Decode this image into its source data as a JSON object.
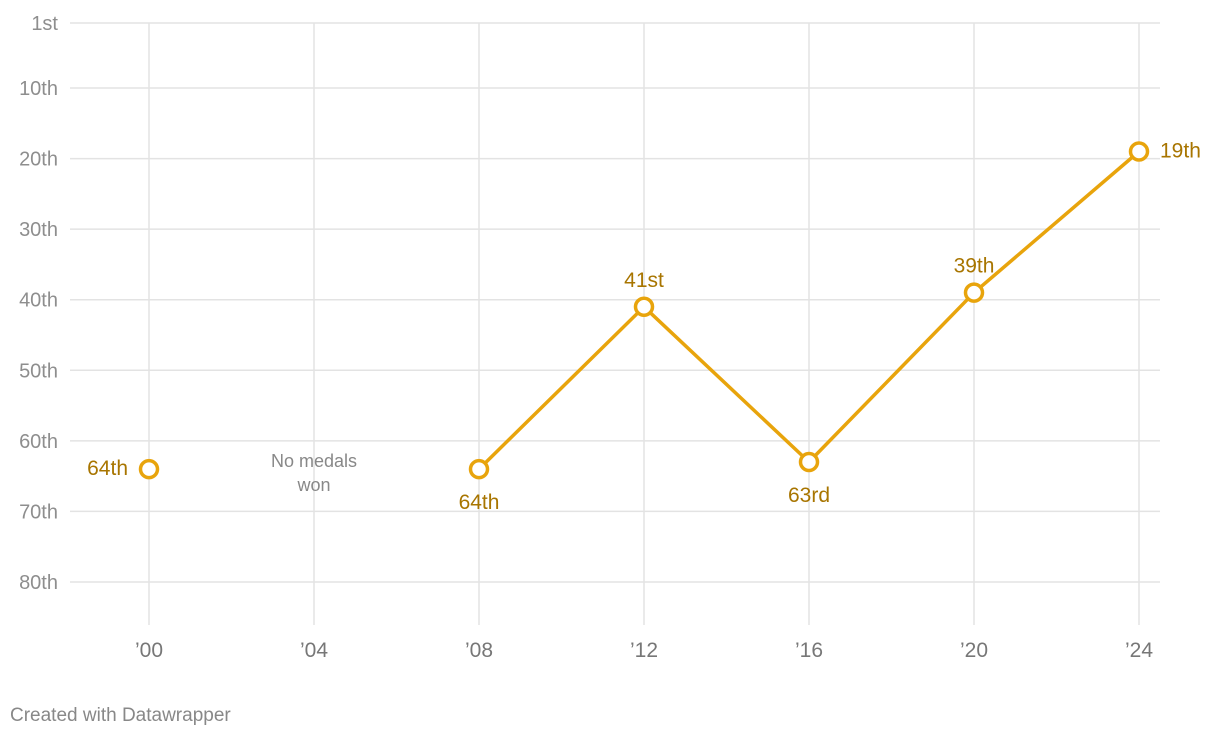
{
  "chart_data": {
    "type": "line",
    "y_inverted": true,
    "ylim": [
      1,
      86
    ],
    "xlim": [
      1998,
      2026
    ],
    "y_ticks": [
      {
        "value": 1,
        "label": "1st"
      },
      {
        "value": 10,
        "label": "10th"
      },
      {
        "value": 20,
        "label": "20th"
      },
      {
        "value": 30,
        "label": "30th"
      },
      {
        "value": 40,
        "label": "40th"
      },
      {
        "value": 50,
        "label": "50th"
      },
      {
        "value": 60,
        "label": "60th"
      },
      {
        "value": 70,
        "label": "70th"
      },
      {
        "value": 80,
        "label": "80th"
      }
    ],
    "x_ticks": [
      {
        "value": 2000,
        "label": "’00"
      },
      {
        "value": 2004,
        "label": "’04"
      },
      {
        "value": 2008,
        "label": "’08"
      },
      {
        "value": 2012,
        "label": "’12"
      },
      {
        "value": 2016,
        "label": "’16"
      },
      {
        "value": 2020,
        "label": "’20"
      },
      {
        "value": 2024,
        "label": "’24"
      }
    ],
    "points": [
      {
        "x": 2000,
        "y": 64,
        "label": "64th",
        "label_pos": "left"
      },
      {
        "x": 2008,
        "y": 64,
        "label": "64th",
        "label_pos": "below"
      },
      {
        "x": 2012,
        "y": 41,
        "label": "41st",
        "label_pos": "above"
      },
      {
        "x": 2016,
        "y": 63,
        "label": "63rd",
        "label_pos": "below"
      },
      {
        "x": 2020,
        "y": 39,
        "label": "39th",
        "label_pos": "above"
      },
      {
        "x": 2024,
        "y": 19,
        "label": "19th",
        "label_pos": "right"
      }
    ],
    "segments": [
      [
        2008,
        2012,
        2016,
        2020,
        2024
      ]
    ],
    "annotation": {
      "x": 2004,
      "y": 65,
      "lines": [
        "No medals",
        "won"
      ]
    },
    "grid": true,
    "color": "#e8a40c",
    "label_color": "#a87500"
  },
  "footer": {
    "credit": "Created with Datawrapper"
  }
}
